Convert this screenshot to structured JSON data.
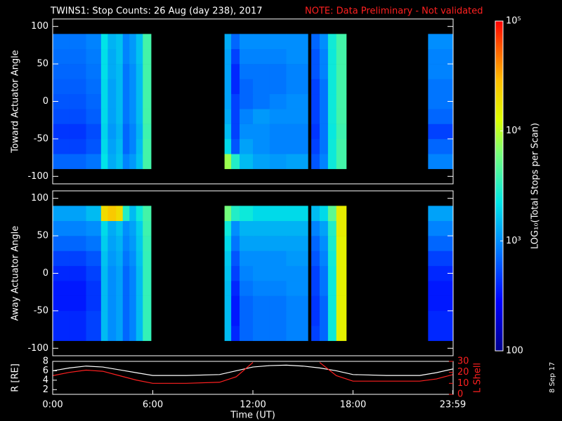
{
  "title": "TWINS1: Stop Counts: 26 Aug (day 238), 2017",
  "note": "NOTE: Data Preliminary - Not validated",
  "date_stamp": "8 Sep 17",
  "chart_data": [
    {
      "type": "heatmap",
      "ylabel": "Toward Actuator Angle",
      "xbins": [
        0,
        1,
        2,
        2.9,
        3.3,
        3.8,
        4.2,
        4.6,
        5,
        5.4,
        5.9,
        10.3,
        10.7,
        11.2,
        12,
        13,
        14,
        15.3,
        15.5,
        16,
        16.5,
        17,
        17.6,
        22.5,
        24
      ],
      "ybins": [
        -90,
        -70,
        -50,
        -30,
        -10,
        10,
        30,
        50,
        70,
        90
      ],
      "xlim": [
        0,
        24
      ],
      "ylim": [
        -110,
        110
      ],
      "yticks": [
        -100,
        -50,
        0,
        50,
        100
      ],
      "values": [
        [
          700,
          700,
          800,
          2200,
          1300,
          1600,
          900,
          1100,
          1600,
          4000,
          null,
          8000,
          3000,
          1500,
          1200,
          1100,
          1200,
          null,
          600,
          900,
          2500,
          4000,
          null,
          900
        ],
        [
          500,
          500,
          600,
          2000,
          1200,
          1500,
          700,
          900,
          1500,
          4000,
          null,
          2000,
          600,
          1200,
          1000,
          900,
          900,
          null,
          500,
          800,
          2500,
          4000,
          null,
          700
        ],
        [
          450,
          450,
          550,
          1900,
          1100,
          1400,
          700,
          900,
          1400,
          3800,
          null,
          1500,
          500,
          1000,
          1000,
          900,
          900,
          null,
          450,
          800,
          2400,
          3800,
          null,
          500
        ],
        [
          550,
          550,
          650,
          2000,
          1200,
          1500,
          800,
          1000,
          1500,
          4000,
          null,
          1300,
          500,
          900,
          1100,
          1000,
          1000,
          null,
          500,
          800,
          2500,
          4000,
          null,
          700
        ],
        [
          600,
          600,
          700,
          2000,
          1200,
          1500,
          800,
          1000,
          1500,
          4000,
          null,
          1200,
          500,
          700,
          800,
          900,
          1000,
          null,
          500,
          800,
          2500,
          4000,
          null,
          800
        ],
        [
          650,
          650,
          750,
          2000,
          1200,
          1500,
          800,
          1000,
          1500,
          4000,
          null,
          1200,
          400,
          700,
          800,
          800,
          900,
          null,
          500,
          800,
          2500,
          4000,
          null,
          800
        ],
        [
          700,
          700,
          800,
          2100,
          1300,
          1500,
          800,
          1000,
          1500,
          4000,
          null,
          1200,
          400,
          800,
          800,
          800,
          900,
          null,
          600,
          900,
          2500,
          4000,
          null,
          900
        ],
        [
          750,
          750,
          850,
          2100,
          1300,
          1600,
          900,
          1100,
          1600,
          4000,
          null,
          1200,
          500,
          900,
          900,
          900,
          1000,
          null,
          600,
          900,
          2500,
          4000,
          null,
          900
        ],
        [
          800,
          800,
          900,
          2200,
          1400,
          1600,
          900,
          1100,
          1600,
          4000,
          null,
          1300,
          700,
          1000,
          1000,
          1000,
          1000,
          null,
          700,
          1000,
          2600,
          4000,
          null,
          1000
        ]
      ]
    },
    {
      "type": "heatmap",
      "ylabel": "Away Actuator Angle",
      "xbins": [
        0,
        1,
        2,
        2.9,
        3.3,
        3.8,
        4.2,
        4.6,
        5,
        5.4,
        5.9,
        10.3,
        10.7,
        11.2,
        12,
        13,
        14,
        15.3,
        15.5,
        16,
        16.5,
        17,
        17.6,
        22.5,
        24
      ],
      "ybins": [
        -90,
        -70,
        -50,
        -30,
        -10,
        10,
        30,
        50,
        70,
        90
      ],
      "xlim": [
        0,
        24
      ],
      "ylim": [
        -110,
        110
      ],
      "yticks": [
        -100,
        -50,
        0,
        50,
        100
      ],
      "values": [
        [
          400,
          400,
          500,
          1500,
          1000,
          1200,
          700,
          900,
          1500,
          3500,
          null,
          1500,
          400,
          700,
          800,
          800,
          900,
          null,
          500,
          700,
          2500,
          15000,
          null,
          400
        ],
        [
          400,
          400,
          500,
          1500,
          1000,
          1200,
          700,
          900,
          1500,
          3500,
          null,
          1500,
          350,
          700,
          800,
          800,
          900,
          null,
          450,
          700,
          2500,
          15000,
          null,
          400
        ],
        [
          350,
          350,
          450,
          1500,
          1000,
          1200,
          700,
          900,
          1500,
          3500,
          null,
          1500,
          350,
          700,
          800,
          800,
          900,
          null,
          450,
          700,
          2500,
          15000,
          null,
          350
        ],
        [
          350,
          350,
          450,
          1500,
          1000,
          1200,
          700,
          900,
          1500,
          3500,
          null,
          1500,
          400,
          800,
          900,
          900,
          1000,
          null,
          500,
          800,
          2500,
          15000,
          null,
          350
        ],
        [
          400,
          400,
          500,
          1500,
          1000,
          1200,
          700,
          900,
          1500,
          3500,
          null,
          1600,
          500,
          900,
          1000,
          1000,
          1000,
          null,
          500,
          800,
          2500,
          15000,
          null,
          400
        ],
        [
          500,
          500,
          600,
          1600,
          1100,
          1300,
          800,
          1000,
          1600,
          3500,
          null,
          1700,
          600,
          1000,
          1000,
          1000,
          1100,
          null,
          600,
          900,
          2600,
          15000,
          null,
          500
        ],
        [
          700,
          700,
          800,
          1800,
          1200,
          1400,
          900,
          1100,
          1700,
          3600,
          null,
          2000,
          800,
          1200,
          1200,
          1200,
          1200,
          null,
          700,
          1000,
          2800,
          15000,
          null,
          700
        ],
        [
          900,
          900,
          1000,
          2000,
          1300,
          1600,
          1000,
          1200,
          1800,
          3800,
          null,
          2500,
          1000,
          1400,
          1400,
          1400,
          1400,
          null,
          900,
          1200,
          3000,
          16000,
          null,
          900
        ],
        [
          1200,
          1200,
          1500,
          20000,
          25000,
          20000,
          3000,
          1500,
          2500,
          4000,
          null,
          6000,
          3000,
          2500,
          2000,
          2000,
          2000,
          null,
          1500,
          2000,
          5000,
          16000,
          null,
          1200
        ]
      ]
    },
    {
      "type": "line",
      "xlabel": "Time (UT)",
      "ylabel": "R [RE]",
      "y2label": "L Shell",
      "x": [
        0,
        1,
        2,
        3,
        4,
        5,
        6,
        8,
        10,
        11,
        12,
        13,
        14,
        15,
        16,
        17,
        18,
        20,
        22,
        23,
        24
      ],
      "xlim": [
        0,
        24
      ],
      "xticks": [
        {
          "value": 0,
          "label": "0:00"
        },
        {
          "value": 6,
          "label": "6:00"
        },
        {
          "value": 12,
          "label": "12:00"
        },
        {
          "value": 18,
          "label": "18:00"
        },
        {
          "value": 23.98,
          "label": "23:59"
        }
      ],
      "ylim": [
        1,
        8
      ],
      "yticks": [
        2,
        4,
        6,
        8
      ],
      "y2lim": [
        0,
        30
      ],
      "y2ticks": [
        0,
        10,
        20,
        30
      ],
      "y2color": "#ff2020",
      "series": [
        {
          "color": "#ffffff",
          "values": [
            6,
            6.6,
            7,
            6.8,
            6.2,
            5.6,
            5,
            5,
            5.2,
            6,
            6.8,
            7.1,
            7.2,
            7,
            6.6,
            6,
            5.2,
            5,
            5,
            5.6,
            6.4
          ]
        },
        {
          "color": "#ff2020",
          "axis": "y2",
          "values": [
            17,
            20,
            22,
            21,
            17,
            13,
            10,
            10,
            11,
            16,
            29,
            null,
            null,
            null,
            29,
            17,
            12,
            12,
            12,
            14,
            18
          ]
        }
      ]
    },
    {
      "type": "colorbar",
      "label": "LOG₁₀(Total Stops per Scan)",
      "scale": "log",
      "lim": [
        100,
        100000
      ],
      "ticks": [
        100,
        {
          "value": 1000,
          "label": "10³"
        },
        {
          "value": 10000,
          "label": "10⁴"
        },
        {
          "value": 100000,
          "label": "10⁵"
        }
      ]
    }
  ]
}
